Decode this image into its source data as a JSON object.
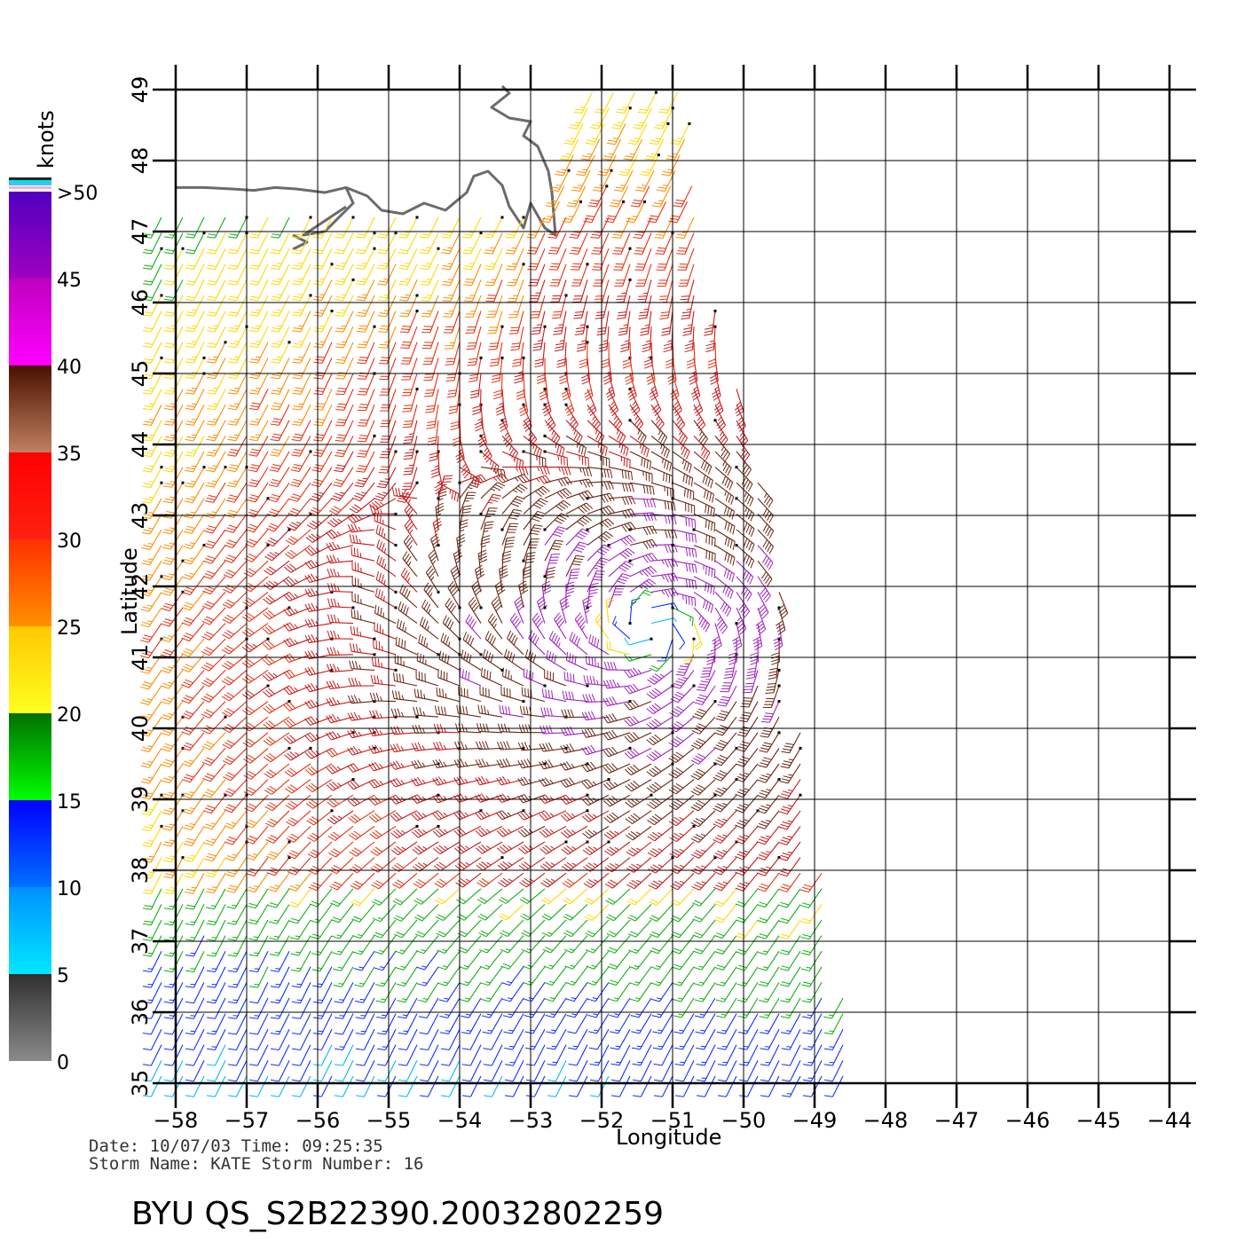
{
  "map": {
    "lon_ticks": [
      -58,
      -57,
      -56,
      -55,
      -54,
      -53,
      -52,
      -51,
      -50,
      -49,
      -48,
      -47,
      -46,
      -45,
      -44
    ],
    "lat_ticks": [
      35,
      36,
      37,
      38,
      39,
      40,
      41,
      42,
      43,
      44,
      45,
      46,
      47,
      48,
      49
    ],
    "xlabel": "Longitude",
    "ylabel": "Latitude",
    "lon_range": [
      -58,
      -44
    ],
    "lat_range": [
      35,
      49
    ],
    "grid": true,
    "storm_center": {
      "lon": -51.3,
      "lat": 41.4
    },
    "swath_east_edge": [
      [
        35,
        -48.4
      ],
      [
        38,
        -48.9
      ],
      [
        40,
        -49.2
      ],
      [
        42,
        -49.5
      ],
      [
        44,
        -49.9
      ],
      [
        46,
        -50.4
      ],
      [
        47,
        -50.6
      ],
      [
        49,
        -50.8
      ]
    ],
    "colors": {
      "land": "#6b6b6b",
      "grid": "#000000"
    }
  },
  "colorbar": {
    "unit_label": "knots",
    "tick_labels": [
      "0",
      "5",
      "10",
      "15",
      "20",
      "25",
      "30",
      "35",
      "40",
      "45",
      ">50"
    ],
    "bands": [
      {
        "from": 0,
        "to": 5,
        "top": "#303030",
        "bottom": "#8a8a8a"
      },
      {
        "from": 5,
        "to": 10,
        "top": "#0090ff",
        "bottom": "#00e8ff"
      },
      {
        "from": 10,
        "to": 15,
        "top": "#0000ff",
        "bottom": "#0070ff"
      },
      {
        "from": 15,
        "to": 20,
        "top": "#007000",
        "bottom": "#00ff00"
      },
      {
        "from": 20,
        "to": 25,
        "top": "#ffc800",
        "bottom": "#ffff20"
      },
      {
        "from": 25,
        "to": 30,
        "top": "#ff3000",
        "bottom": "#ff9000"
      },
      {
        "from": 30,
        "to": 35,
        "top": "#ff0000",
        "bottom": "#ff2010"
      },
      {
        "from": 35,
        "to": 40,
        "top": "#4a1000",
        "bottom": "#c08060"
      },
      {
        "from": 40,
        "to": 45,
        "top": "#c000c0",
        "bottom": "#ff00ff"
      },
      {
        "from": 45,
        "to": 50,
        "top": "#5000c0",
        "bottom": "#a000c0"
      }
    ]
  },
  "meta": {
    "date_line": "Date: 10/07/03   Time: 09:25:35",
    "storm_line": "Storm  Name:  KATE    Storm  Number:  16",
    "title": "BYU  QS_S2B22390.20032802259"
  }
}
